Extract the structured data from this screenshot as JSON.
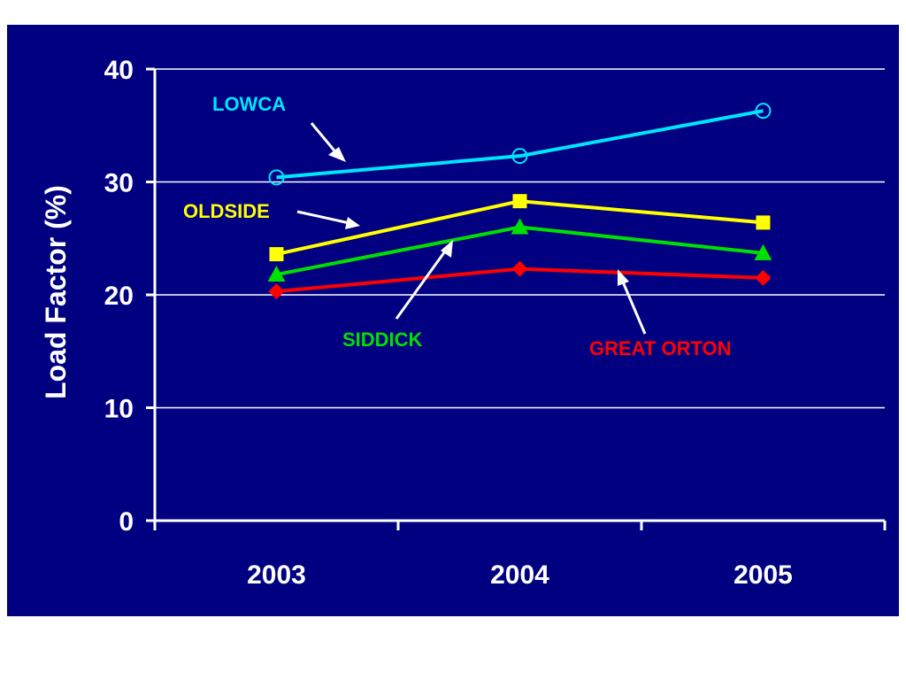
{
  "chart_data": {
    "type": "line",
    "title": "",
    "xlabel": "",
    "ylabel": "Load Factor (%)",
    "categories": [
      "2003",
      "2004",
      "2005"
    ],
    "ylim": [
      0,
      40
    ],
    "yticks": [
      0,
      10,
      20,
      30,
      40
    ],
    "grid": true,
    "background_color": "#000080",
    "series": [
      {
        "name": "LOWCA",
        "values": [
          30.4,
          32.3,
          36.3
        ],
        "color": "#00e5ff",
        "marker": "open-circle"
      },
      {
        "name": "OLDSIDE",
        "values": [
          23.6,
          28.3,
          26.4
        ],
        "color": "#ffff00",
        "marker": "square"
      },
      {
        "name": "SIDDICK",
        "values": [
          21.8,
          26.0,
          23.7
        ],
        "color": "#00e000",
        "marker": "triangle"
      },
      {
        "name": "GREAT ORTON",
        "values": [
          20.3,
          22.3,
          21.5
        ],
        "color": "#ff0000",
        "marker": "diamond"
      }
    ]
  }
}
